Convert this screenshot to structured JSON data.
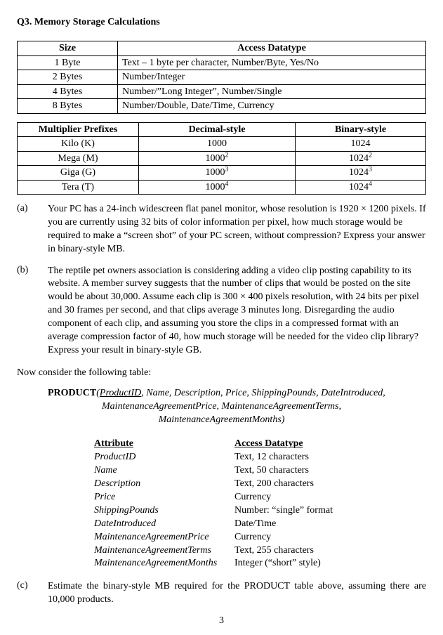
{
  "title": "Q3. Memory Storage Calculations",
  "table1": {
    "headers": [
      "Size",
      "Access Datatype"
    ],
    "rows": [
      [
        "1 Byte",
        "Text – 1 byte per character, Number/Byte, Yes/No"
      ],
      [
        "2 Bytes",
        "Number/Integer"
      ],
      [
        "4 Bytes",
        "Number/”Long Integer”, Number/Single"
      ],
      [
        "8 Bytes",
        "Number/Double, Date/Time, Currency"
      ]
    ]
  },
  "table2": {
    "headers": [
      "Multiplier Prefixes",
      "Decimal-style",
      "Binary-style"
    ],
    "rows": [
      {
        "mp": "Kilo (K)",
        "dec_base": "1000",
        "dec_exp": "",
        "bin_base": "1024",
        "bin_exp": ""
      },
      {
        "mp": "Mega (M)",
        "dec_base": "1000",
        "dec_exp": "2",
        "bin_base": "1024",
        "bin_exp": "2"
      },
      {
        "mp": "Giga (G)",
        "dec_base": "1000",
        "dec_exp": "3",
        "bin_base": "1024",
        "bin_exp": "3"
      },
      {
        "mp": "Tera (T)",
        "dec_base": "1000",
        "dec_exp": "4",
        "bin_base": "1024",
        "bin_exp": "4"
      }
    ]
  },
  "qa": {
    "label": "(a)",
    "text": "Your PC has a 24-inch widescreen flat panel monitor, whose resolution is 1920 × 1200 pixels.  If you are currently using 32 bits of color information per pixel, how much storage would be required to make a “screen shot” of your PC screen, without compression?   Express your answer in binary-style MB."
  },
  "qb": {
    "label": "(b)",
    "text": "The reptile pet owners association is considering adding a video clip posting capability to its website.  A member survey suggests that the number of clips that would be posted on the site would be about 30,000.  Assume each clip is 300 × 400 pixels resolution, with 24 bits per pixel and 30 frames per second, and that clips average 3 minutes long.  Disregarding the audio component of each clip, and assuming you store the clips in a compressed format with an average compression factor of 40, how much storage will be needed for the video clip library?  Express your result in binary-style GB."
  },
  "now_line": "Now consider the following table:",
  "schema": {
    "name": "PRODUCT",
    "pk": "ProductID",
    "rest_line1": ", Name, Description, Price, ShippingPounds, DateIntroduced,",
    "line2": "MaintenanceAgreementPrice, MaintenanceAgreementTerms,",
    "line3": "MaintenanceAgreementMonths)"
  },
  "attr_table": {
    "headers": [
      "Attribute",
      "Access Datatype"
    ],
    "rows": [
      [
        "ProductID",
        "Text, 12 characters"
      ],
      [
        "Name",
        "Text, 50 characters"
      ],
      [
        "Description",
        "Text, 200 characters"
      ],
      [
        "Price",
        "Currency"
      ],
      [
        "ShippingPounds",
        "Number: “single” format"
      ],
      [
        "DateIntroduced",
        "Date/Time"
      ],
      [
        "MaintenanceAgreementPrice",
        "Currency"
      ],
      [
        "MaintenanceAgreementTerms",
        "Text, 255 characters"
      ],
      [
        "MaintenanceAgreementMonths",
        "Integer (“short” style)"
      ]
    ]
  },
  "qc": {
    "label": "(c)",
    "text": "Estimate the binary-style MB required for the PRODUCT table above, assuming there are 10,000 products."
  },
  "page_number": "3"
}
